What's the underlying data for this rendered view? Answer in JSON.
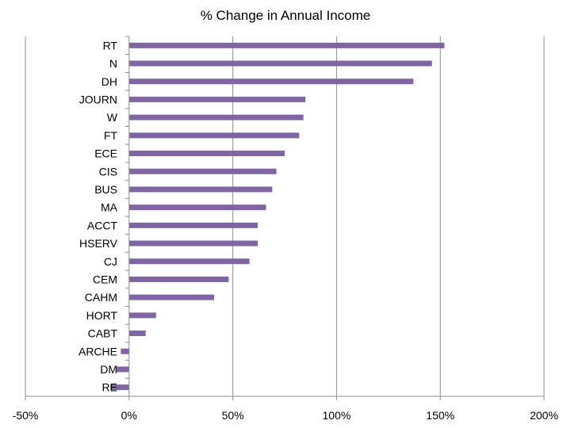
{
  "chart_data": {
    "type": "bar",
    "orientation": "horizontal",
    "title": "% Change in Annual Income",
    "categories": [
      "RT",
      "N",
      "DH",
      "JOURN",
      "W",
      "FT",
      "ECE",
      "CIS",
      "BUS",
      "MA",
      "ACCT",
      "HSERV",
      "CJ",
      "CEM",
      "CAHM",
      "HORT",
      "CABT",
      "ARCHE",
      "DM",
      "RE"
    ],
    "values": [
      152,
      146,
      137,
      85,
      84,
      82,
      75,
      71,
      69,
      66,
      62,
      62,
      58,
      48,
      41,
      13,
      8,
      -4,
      -6,
      -9
    ],
    "xlim": [
      -50,
      200
    ],
    "xticks": [
      "-50%",
      "0%",
      "50%",
      "100%",
      "150%",
      "200%"
    ],
    "xtick_values": [
      -50,
      0,
      50,
      100,
      150,
      200
    ],
    "grid": true,
    "bar_color": "#7f66a3"
  }
}
